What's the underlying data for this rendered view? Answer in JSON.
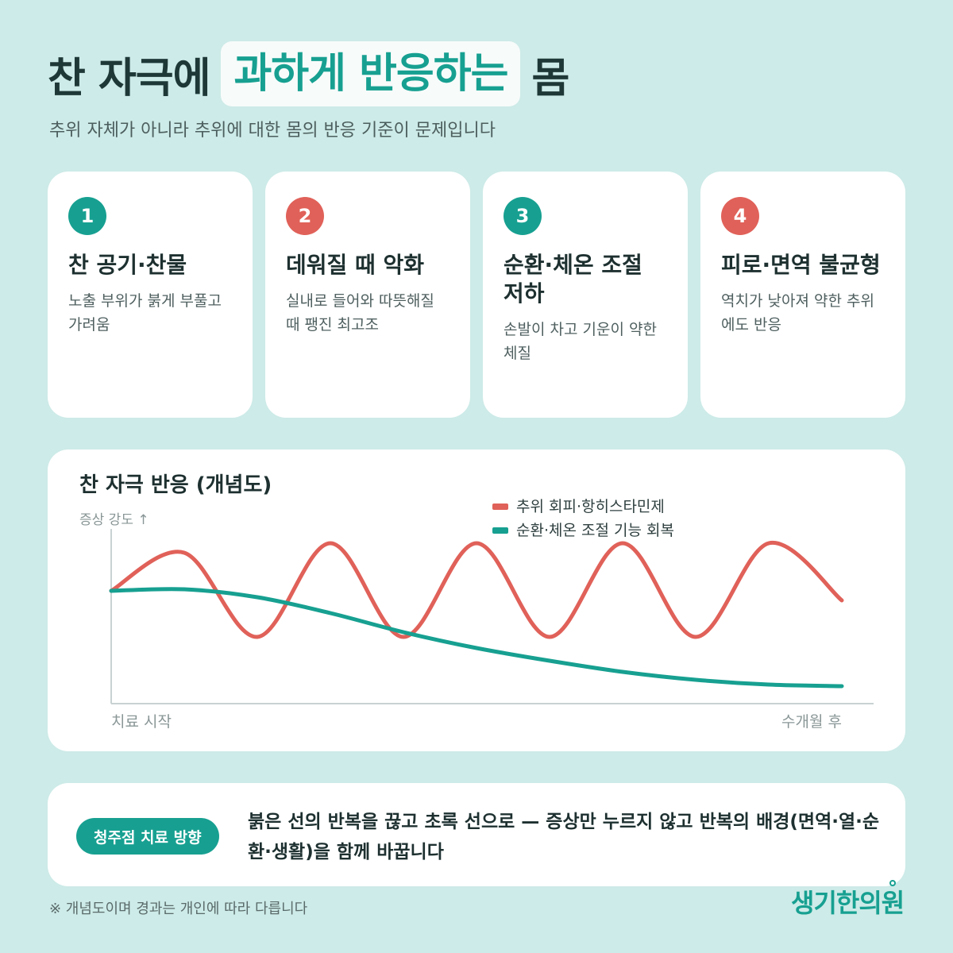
{
  "header": {
    "title_pre": "찬 자극에",
    "title_highlight": "과하게 반응하는",
    "title_post": "몸",
    "subtitle": "추위 자체가 아니라 추위에 대한 몸의 반응 기준이 문제입니다"
  },
  "cards": [
    {
      "number": "1",
      "title": "찬 공기·찬물",
      "desc": "노출 부위가 붉게 부풀고 가려움",
      "color": "#17a091"
    },
    {
      "number": "2",
      "title": "데워질 때 악화",
      "desc": "실내로 들어와 따뜻해질 때 팽진 최고조",
      "color": "#e06159"
    },
    {
      "number": "3",
      "title": "순환·체온 조절 저하",
      "desc": "손발이 차고 기운이 약한 체질",
      "color": "#17a091"
    },
    {
      "number": "4",
      "title": "피로·면역 불균형",
      "desc": "역치가 낮아져 약한 추위에도 반응",
      "color": "#e06159"
    }
  ],
  "chart_data": {
    "type": "line",
    "title": "찬 자극 반응 (개념도)",
    "ylabel": "증상 강도 ↑",
    "x_start_label": "치료 시작",
    "x_end_label": "수개월 후",
    "x": [
      0,
      0.1,
      0.2,
      0.3,
      0.4,
      0.5,
      0.6,
      0.7,
      0.8,
      0.9,
      1.0
    ],
    "series": [
      {
        "name": "추위 회피·항히스타민제",
        "color": "#e06159",
        "shape": "oscillating",
        "values": [
          0.66,
          0.9,
          0.37,
          0.96,
          0.37,
          0.96,
          0.37,
          0.96,
          0.37,
          0.96,
          0.6
        ]
      },
      {
        "name": "순환·체온 조절 기능 회복",
        "color": "#17a091",
        "shape": "decreasing",
        "values": [
          0.66,
          0.67,
          0.62,
          0.52,
          0.4,
          0.3,
          0.22,
          0.15,
          0.1,
          0.07,
          0.06
        ]
      }
    ],
    "ylim": [
      0,
      1
    ],
    "grid": false,
    "legend": "top-center"
  },
  "bottom": {
    "pill": "청주점 치료 방향",
    "text": "붉은 선의 반복을 끊고 초록 선으로 — 증상만 누르지 않고 반복의 배경(면역·열·순환·생활)을 함께 바꿉니다"
  },
  "footnote": "※ 개념도이며 경과는 개인에 따라 다릅니다",
  "logo": "생기한의원",
  "colors": {
    "accent": "#17a091",
    "alert": "#e06159",
    "background": "#cdebe8"
  }
}
